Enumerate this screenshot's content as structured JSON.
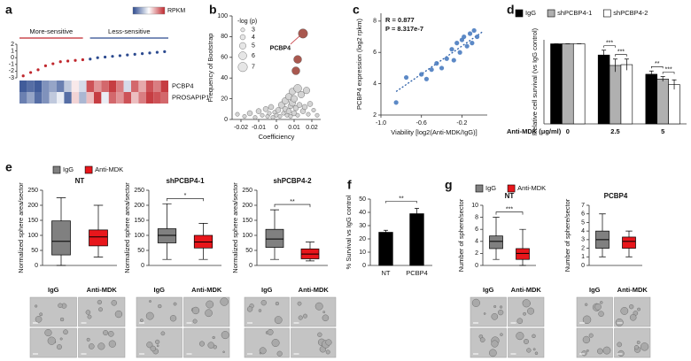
{
  "chart_data": [
    {
      "type": "heatmap",
      "panel": "a",
      "colorbar_label": "RPKM",
      "colorscale": [
        "#2c4a8f",
        "#ffffff",
        "#c0272d"
      ],
      "zlim": [
        -1,
        1
      ],
      "groups": [
        {
          "name": "More-sensitive",
          "color": "#c0272d"
        },
        {
          "name": "Less-sensitive",
          "color": "#2c4a8f"
        }
      ],
      "values": [
        -2.7,
        -2.2,
        -1.8,
        -1.2,
        -0.9,
        -0.6,
        -0.5,
        -0.4,
        -0.3,
        -0.2,
        0,
        0.1,
        0.2,
        0.3,
        0.4,
        0.5,
        0.6,
        0.7,
        0.8,
        0.9
      ],
      "colors": [
        "#c0272d",
        "#c0272d",
        "#c0272d",
        "#c0272d",
        "#c0272d",
        "#c0272d",
        "#c0272d",
        "#c0272d",
        "#c0272d",
        "#2c4a8f",
        "#2c4a8f",
        "#2c4a8f",
        "#2c4a8f",
        "#2c4a8f",
        "#2c4a8f",
        "#2c4a8f",
        "#2c4a8f",
        "#2c4a8f",
        "#2c4a8f",
        "#2c4a8f"
      ],
      "ylim": [
        -3,
        2
      ],
      "yticks": [
        -3,
        -2,
        -1,
        0,
        1,
        2
      ],
      "rows": [
        "PCBP4",
        "PROSAPIP1"
      ],
      "matrix": [
        [
          -0.9,
          -0.8,
          -0.9,
          -0.6,
          -0.5,
          -0.7,
          -0.3,
          0.1,
          -0.2,
          0.8,
          0.5,
          0.7,
          0.9,
          0.6,
          -0.2,
          0.7,
          0.4,
          0.8,
          0.6,
          0.9
        ],
        [
          -0.7,
          -0.5,
          -0.8,
          -0.6,
          -0.3,
          -0.1,
          -0.8,
          0.2,
          -0.4,
          0.3,
          0.9,
          -0.1,
          0.7,
          0.5,
          0.8,
          0.3,
          0.6,
          0.9,
          0.8,
          0.7
        ]
      ]
    },
    {
      "type": "scatter",
      "panel": "b",
      "xlabel": "Coefficiency",
      "ylabel": "Frequency of Bootstrap",
      "xlim": [
        -0.025,
        0.025
      ],
      "xticks": [
        -0.02,
        -0.01,
        0,
        0.01,
        0.02
      ],
      "ylim": [
        0,
        100
      ],
      "yticks": [
        0,
        20,
        40,
        60,
        80,
        100
      ],
      "size_legend": {
        "title": "-log (p)",
        "sizes": [
          3,
          4,
          5,
          6,
          7
        ]
      },
      "annotation": "PCBP4",
      "series": [
        {
          "color": "#cfcfcf",
          "x": [
            -0.022,
            -0.018,
            -0.015,
            -0.012,
            -0.01,
            -0.008,
            -0.006,
            -0.005,
            -0.004,
            -0.003,
            -0.002,
            -0.001,
            0,
            0.001,
            0.002,
            0.003,
            0.004,
            0.005,
            0.005,
            0.006,
            0.007,
            0.007,
            0.008,
            0.008,
            0.009,
            0.009,
            0.01,
            0.01,
            0.011,
            0.012,
            0.012,
            0.013,
            0.014,
            0.015,
            0.016,
            0.017,
            0.018,
            0.019,
            0.021,
            0.023
          ],
          "values": [
            5,
            3,
            6,
            2,
            8,
            4,
            10,
            3,
            6,
            12,
            2,
            7,
            4,
            9,
            3,
            14,
            6,
            18,
            10,
            4,
            22,
            8,
            13,
            3,
            27,
            16,
            6,
            20,
            11,
            30,
            4,
            14,
            24,
            8,
            12,
            28,
            5,
            15,
            9,
            4
          ],
          "sizes": [
            3,
            3,
            4,
            3,
            4,
            3,
            4,
            3,
            3,
            4,
            3,
            3,
            3,
            4,
            3,
            5,
            3,
            5,
            4,
            3,
            5,
            4,
            4,
            3,
            5,
            5,
            4,
            5,
            4,
            6,
            3,
            4,
            5,
            4,
            4,
            5,
            3,
            4,
            3,
            3
          ]
        },
        {
          "color": "#a0463c",
          "x": [
            0.015,
            0.012,
            0.011
          ],
          "values": [
            83,
            58,
            47
          ],
          "sizes": [
            7,
            6,
            6
          ]
        }
      ]
    },
    {
      "type": "scatter",
      "panel": "c",
      "xlabel": "Viability [log2(Anti-MDK/IgG)]",
      "ylabel": "PCBP4 expression (log2 rpkm)",
      "xlim": [
        -1,
        0.05
      ],
      "xticks": [
        {
          "value": -1,
          "label": "-1.0"
        },
        -0.6,
        -0.2
      ],
      "ylim": [
        2,
        8.5
      ],
      "yticks": [
        2,
        4,
        6,
        8
      ],
      "stats": [
        "R = 0.877",
        "P = 8.317e-7"
      ],
      "trendline": {
        "color": "#2c5fa8",
        "x": [
          -0.85,
          0
        ],
        "values": [
          3.5,
          7.3
        ]
      },
      "series": [
        {
          "color": "#4a7cc0",
          "x": [
            -0.85,
            -0.75,
            -0.6,
            -0.55,
            -0.5,
            -0.45,
            -0.4,
            -0.35,
            -0.3,
            -0.28,
            -0.25,
            -0.22,
            -0.2,
            -0.18,
            -0.15,
            -0.12,
            -0.1,
            -0.08,
            -0.05
          ],
          "values": [
            2.8,
            4.4,
            4.6,
            4.3,
            4.9,
            5.3,
            5.0,
            5.6,
            6.2,
            5.5,
            6.6,
            6.0,
            6.8,
            7.0,
            6.4,
            7.2,
            6.6,
            7.4,
            7.0
          ]
        }
      ]
    },
    {
      "type": "bar",
      "panel": "d",
      "xlabel": "Anti-MDK (μg/ml)",
      "ylabel": "Relative cell survival (vs IgG control)",
      "categories": [
        "0",
        "2.5",
        "5"
      ],
      "ylim": [
        0,
        1.05
      ],
      "series": [
        {
          "name": "IgG",
          "color": "#000000",
          "values": [
            1,
            0.86,
            0.62
          ],
          "errors": [
            0,
            0.06,
            0.04
          ]
        },
        {
          "name": "shPCBP4-1",
          "color": "#b0b0b0",
          "values": [
            1,
            0.73,
            0.56
          ],
          "errors": [
            0,
            0.08,
            0.03
          ]
        },
        {
          "name": "shPCBP4-2",
          "color": "#ffffff",
          "values": [
            1,
            0.74,
            0.49
          ],
          "errors": [
            0,
            0.07,
            0.06
          ]
        }
      ],
      "annotations": [
        "***",
        "***",
        "**",
        "***"
      ]
    },
    {
      "type": "box",
      "panel": "e",
      "title": "NT",
      "ylabel": "Normalized sphere area/sector",
      "ylim": [
        0,
        250
      ],
      "yticks": [
        0,
        50,
        100,
        150,
        200,
        250
      ],
      "series": [
        {
          "name": "IgG",
          "color": "#808080",
          "values": [
            0,
            35,
            80,
            148,
            225
          ]
        },
        {
          "name": "Anti-MDK",
          "color": "#e8161b",
          "values": [
            28,
            65,
            95,
            118,
            200
          ]
        }
      ],
      "image_labels": [
        "IgG",
        "Anti-MDK"
      ]
    },
    {
      "type": "box",
      "title": "shPCBP4-1",
      "ylabel": "Normalized sphere area/sector",
      "ylim": [
        0,
        250
      ],
      "yticks": [
        0,
        50,
        100,
        150,
        200,
        250
      ],
      "series": [
        {
          "color": "#808080",
          "values": [
            20,
            75,
            100,
            122,
            205
          ]
        },
        {
          "color": "#e8161b",
          "values": [
            20,
            58,
            78,
            100,
            140
          ]
        }
      ],
      "annotation": "*",
      "image_labels": [
        "IgG",
        "Anti-MDK"
      ]
    },
    {
      "type": "box",
      "title": "shPCBP4-2",
      "ylabel": "Normalized sphere area/sector",
      "ylim": [
        0,
        250
      ],
      "yticks": [
        0,
        50,
        100,
        150,
        200,
        250
      ],
      "series": [
        {
          "color": "#808080",
          "values": [
            20,
            60,
            88,
            120,
            185
          ]
        },
        {
          "color": "#e8161b",
          "values": [
            15,
            22,
            38,
            55,
            78
          ]
        }
      ],
      "annotation": "**",
      "image_labels": [
        "IgG",
        "Anti-MDK"
      ]
    },
    {
      "type": "bar",
      "panel": "f",
      "ylabel": "% Survival vs IgG control",
      "categories": [
        "NT",
        "PCBP4"
      ],
      "values": [
        25,
        39
      ],
      "errors": [
        1.5,
        4
      ],
      "color": "#000000",
      "ylim": [
        0,
        50
      ],
      "yticks": [
        0,
        10,
        20,
        30,
        40,
        50
      ],
      "annotation": "**"
    },
    {
      "type": "box",
      "panel": "g",
      "title": "NT",
      "ylabel": "Number of sphere/sector",
      "ylim": [
        0,
        10
      ],
      "yticks": [
        0,
        2,
        4,
        6,
        8,
        10
      ],
      "series": [
        {
          "name": "IgG",
          "color": "#808080",
          "values": [
            1,
            2.8,
            4,
            4.9,
            8
          ]
        },
        {
          "name": "Anti-MDK",
          "color": "#e8161b",
          "values": [
            0,
            1,
            2,
            2.8,
            6
          ]
        }
      ],
      "annotation": "***",
      "image_labels": [
        "IgG",
        "Anti-MDK"
      ]
    },
    {
      "type": "box",
      "title": "PCBP4",
      "ylabel": "Number of sphere/sector",
      "ylim": [
        0,
        7
      ],
      "yticks": [
        0,
        1,
        2,
        3,
        4,
        5,
        6,
        7
      ],
      "series": [
        {
          "color": "#808080",
          "values": [
            1,
            2,
            3,
            4,
            6
          ]
        },
        {
          "color": "#e8161b",
          "values": [
            1,
            2,
            2.8,
            3.3,
            4
          ]
        }
      ],
      "image_labels": [
        "IgG",
        "Anti-MDK"
      ]
    }
  ]
}
